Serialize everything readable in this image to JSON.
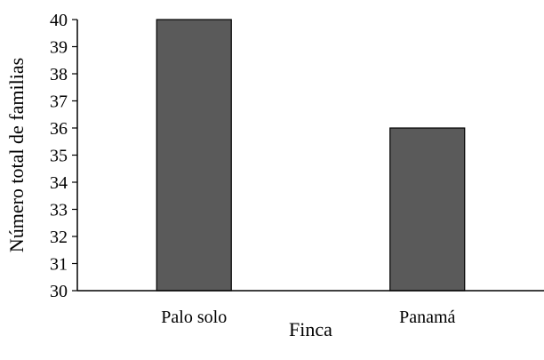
{
  "chart_data": {
    "type": "bar",
    "categories": [
      "Palo solo",
      "Panamá"
    ],
    "values": [
      40,
      36
    ],
    "xlabel": "Finca",
    "ylabel": "Número total de familias",
    "ylim": [
      30,
      40
    ],
    "yticks": [
      30,
      31,
      32,
      33,
      34,
      35,
      36,
      37,
      38,
      39,
      40
    ],
    "grid": false,
    "legend": "none",
    "bar_color": "#5a5a5a",
    "bar_edge_color": "#000000"
  }
}
